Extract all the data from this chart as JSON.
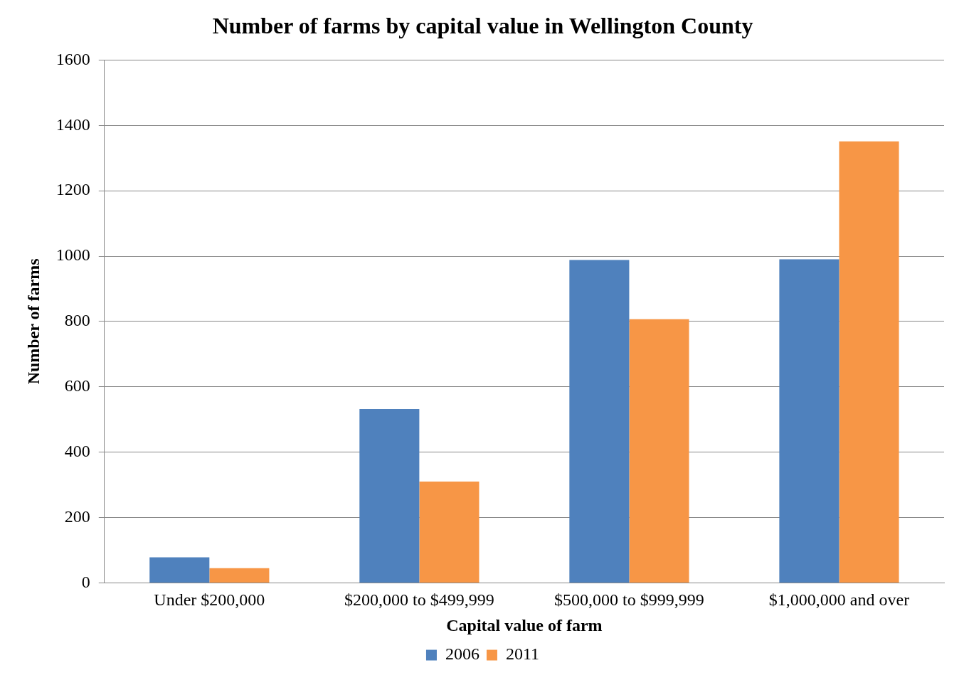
{
  "chart_data": {
    "type": "bar",
    "title": "Number of farms by capital value in Wellington County",
    "xlabel": "Capital value of farm",
    "ylabel": "Number of farms",
    "categories": [
      "Under $200,000",
      "$200,000 to $499,999",
      "$500,000 to $999,999",
      "$1,000,000 and over"
    ],
    "series": [
      {
        "name": "2006",
        "color": "#4f81bd",
        "values": [
          78,
          532,
          988,
          990
        ]
      },
      {
        "name": "2011",
        "color": "#f79646",
        "values": [
          45,
          310,
          807,
          1351
        ]
      }
    ],
    "ylim": [
      0,
      1600
    ],
    "yticks": [
      0,
      200,
      400,
      600,
      800,
      1000,
      1200,
      1400,
      1600
    ],
    "grid": "y",
    "legend": "bottom"
  }
}
